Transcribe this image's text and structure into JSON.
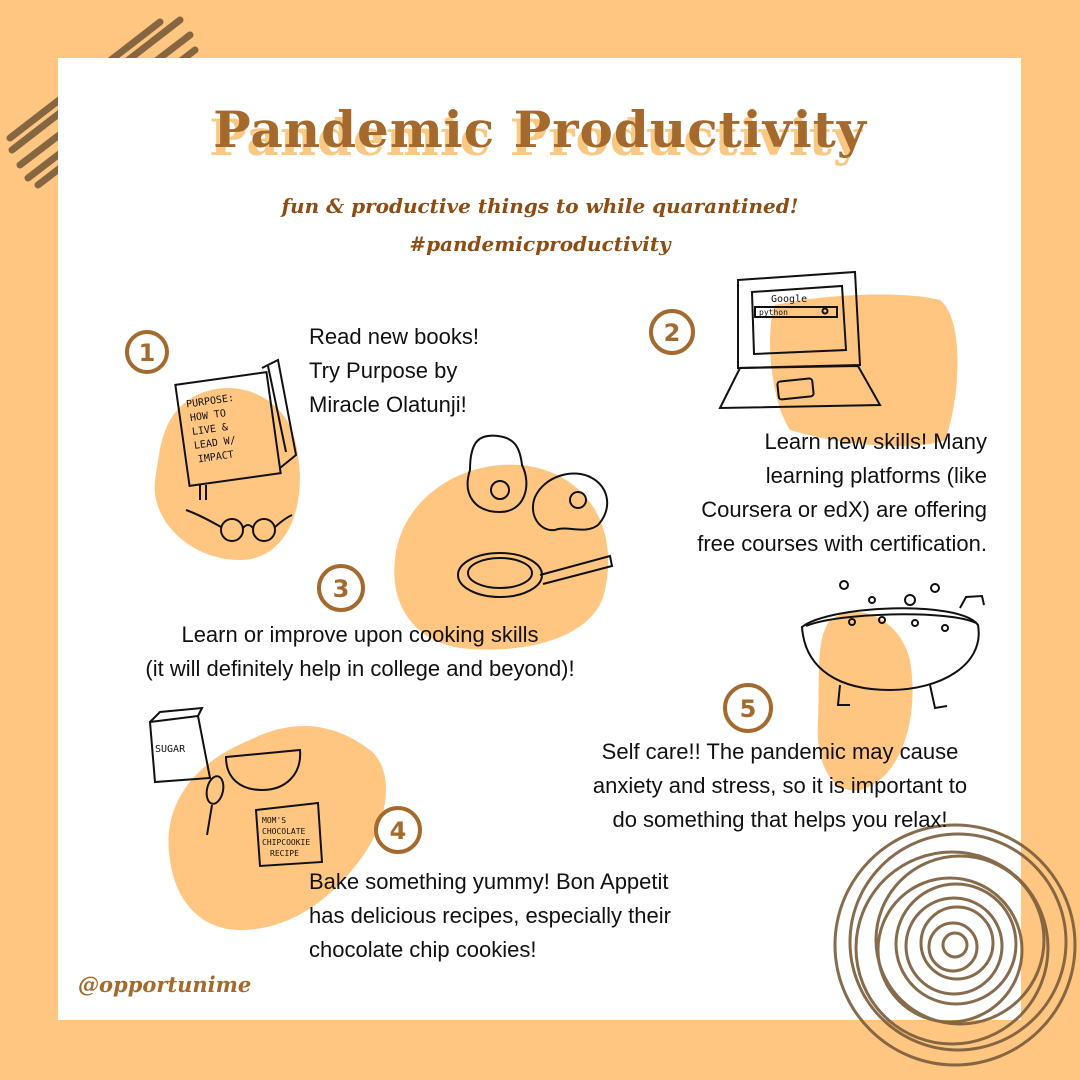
{
  "header": {
    "title": "Pandemic Productivity",
    "subtitle": "fun & productive things to while quarantined!",
    "hashtag": "#pandemicproductivity"
  },
  "items": [
    {
      "number": "1",
      "lines": [
        "Read new books!",
        "Try Purpose by",
        "Miracle Olatunji!"
      ]
    },
    {
      "number": "2",
      "lines": [
        "Learn new skills! Many",
        "learning platforms (like",
        "Coursera or edX) are offering",
        "free courses with certification."
      ]
    },
    {
      "number": "3",
      "lines": [
        "Learn or improve upon cooking skills",
        "(it will definitely help in college and beyond)!"
      ]
    },
    {
      "number": "4",
      "lines": [
        "Bake something yummy! Bon Appetit",
        "has delicious recipes, especially their",
        "chocolate chip cookies!"
      ]
    },
    {
      "number": "5",
      "lines": [
        "Self care!! The pandemic may cause",
        "anxiety and stress, so it is important to",
        "do something that helps you relax!"
      ]
    }
  ],
  "doodles": {
    "book": [
      "PURPOSE:",
      "HOW TO",
      "LIVE &",
      "LEAD W/",
      "IMPACT"
    ],
    "laptop_search_brand": "Google",
    "laptop_search_query": "python",
    "sugar": "SUGAR",
    "recipe_card": [
      "MOM'S",
      "CHOCOLATE",
      "CHIPCOOKIE",
      "RECIPE"
    ]
  },
  "footer": {
    "handle": "@opportunime"
  },
  "colors": {
    "background": "#ffc682",
    "card": "#ffffff",
    "blob": "#ffc682",
    "title": "#a46a2d",
    "title_shadow": "#f9c983",
    "subtitle": "#8d4d12",
    "scribble": "#7a5c3a"
  }
}
